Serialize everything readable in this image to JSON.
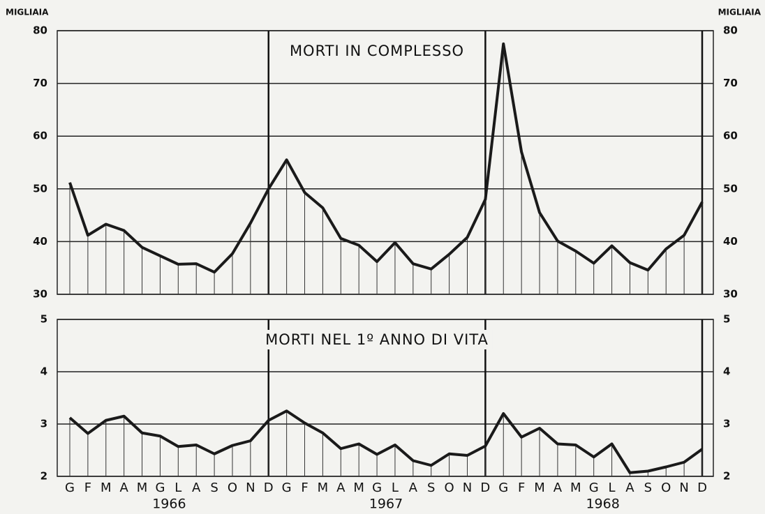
{
  "chart_data": [
    {
      "type": "line",
      "title": "MORTI IN COMPLESSO",
      "y_label": "MIGLIAIA",
      "series": [
        {
          "name": "MORTI IN COMPLESSO",
          "color": "#1a1a1a",
          "values": [
            51.2,
            41.2,
            43.3,
            42.1,
            38.9,
            37.3,
            35.7,
            35.8,
            34.2,
            37.7,
            43.5,
            50.0,
            55.5,
            49.3,
            46.4,
            40.6,
            39.3,
            36.2,
            39.8,
            35.8,
            34.8,
            37.6,
            40.8,
            48.0,
            77.5,
            57.0,
            45.5,
            40.1,
            38.2,
            35.9,
            39.2,
            36.0,
            34.6,
            38.6,
            41.2,
            47.5
          ]
        }
      ],
      "ylim": [
        30,
        80
      ],
      "yticks": [
        30,
        40,
        50,
        60,
        70,
        80
      ],
      "grid": true
    },
    {
      "type": "line",
      "title": "MORTI NEL 1º ANNO DI VITA",
      "categories": [
        "G",
        "F",
        "M",
        "A",
        "M",
        "G",
        "L",
        "A",
        "S",
        "O",
        "N",
        "D",
        "G",
        "F",
        "M",
        "A",
        "M",
        "G",
        "L",
        "A",
        "S",
        "O",
        "N",
        "D",
        "G",
        "F",
        "M",
        "A",
        "M",
        "G",
        "L",
        "A",
        "S",
        "O",
        "N",
        "D"
      ],
      "years": [
        "1966",
        "1967",
        "1968"
      ],
      "series": [
        {
          "name": "MORTI NEL 1º ANNO DI VITA",
          "color": "#1a1a1a",
          "values": [
            3.12,
            2.82,
            3.07,
            3.15,
            2.83,
            2.77,
            2.57,
            2.6,
            2.43,
            2.59,
            2.68,
            3.07,
            3.25,
            3.02,
            2.83,
            2.53,
            2.62,
            2.42,
            2.6,
            2.3,
            2.21,
            2.43,
            2.4,
            2.58,
            3.2,
            2.75,
            2.92,
            2.62,
            2.6,
            2.37,
            2.62,
            2.07,
            2.1,
            2.18,
            2.27,
            2.52
          ]
        }
      ],
      "ylim": [
        2,
        5
      ],
      "yticks": [
        2,
        3,
        4,
        5
      ],
      "grid": true
    }
  ]
}
